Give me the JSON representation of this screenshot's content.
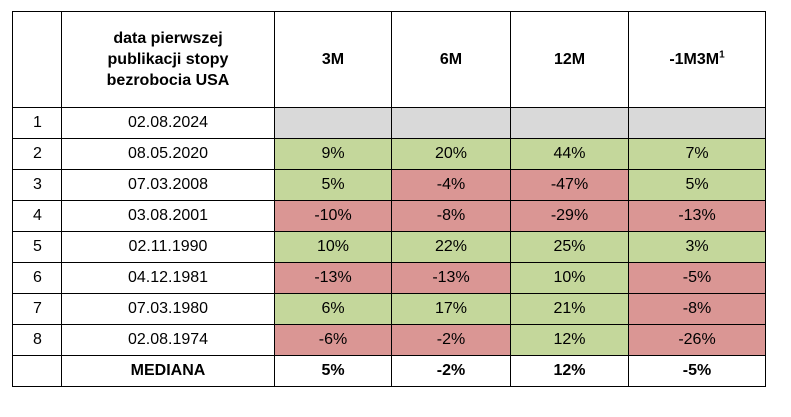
{
  "table": {
    "headers": {
      "index": "",
      "date": "data pierwszej publikacji stopy bezrobocia USA",
      "m3": "3M",
      "m6": "6M",
      "m12": "12M",
      "m1m3m": "-1M3M",
      "m1m3m_sup": "1"
    },
    "rows": [
      {
        "idx": "1",
        "date": "02.08.2024",
        "m3": "",
        "m6": "",
        "m12": "",
        "m1m3m": ""
      },
      {
        "idx": "2",
        "date": "08.05.2020",
        "m3": "9%",
        "m6": "20%",
        "m12": "44%",
        "m1m3m": "7%"
      },
      {
        "idx": "3",
        "date": "07.03.2008",
        "m3": "5%",
        "m6": "-4%",
        "m12": "-47%",
        "m1m3m": "5%"
      },
      {
        "idx": "4",
        "date": "03.08.2001",
        "m3": "-10%",
        "m6": "-8%",
        "m12": "-29%",
        "m1m3m": "-13%"
      },
      {
        "idx": "5",
        "date": "02.11.1990",
        "m3": "10%",
        "m6": "22%",
        "m12": "25%",
        "m1m3m": "3%"
      },
      {
        "idx": "6",
        "date": "04.12.1981",
        "m3": "-13%",
        "m6": "-13%",
        "m12": "10%",
        "m1m3m": "-5%"
      },
      {
        "idx": "7",
        "date": "07.03.1980",
        "m3": "6%",
        "m6": "17%",
        "m12": "21%",
        "m1m3m": "-8%"
      },
      {
        "idx": "8",
        "date": "02.08.1974",
        "m3": "-6%",
        "m6": "-2%",
        "m12": "12%",
        "m1m3m": "-26%"
      }
    ],
    "median": {
      "label": "MEDIANA",
      "m3": "5%",
      "m6": "-2%",
      "m12": "12%",
      "m1m3m": "-5%"
    }
  },
  "colors": {
    "positive": "#c4d79b",
    "negative": "#da9694",
    "empty": "#d9d9d9"
  }
}
